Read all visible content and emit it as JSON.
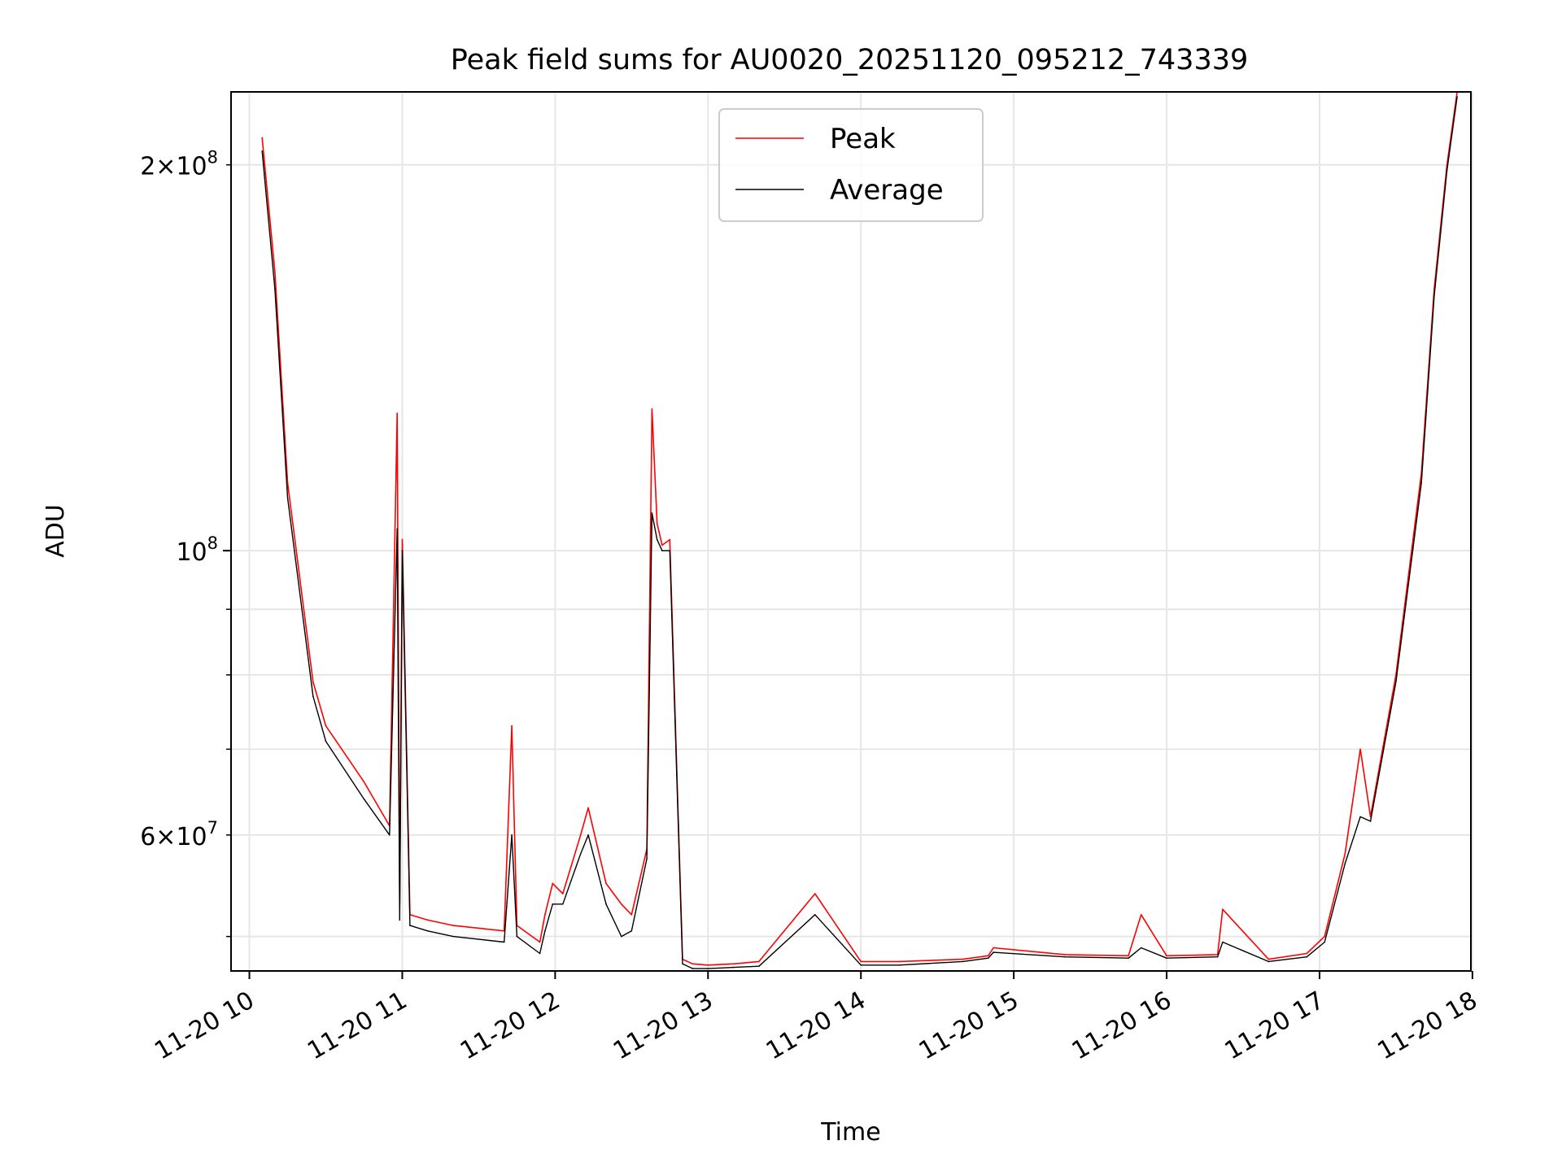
{
  "chart_data": {
    "type": "line",
    "title": "Peak field sums for AU0020_20251120_095212_743339",
    "xlabel": "Time",
    "ylabel": "ADU",
    "yscale": "log",
    "grid": true,
    "legend_position": "top-center",
    "x_ticks": [
      "11-20 10",
      "11-20 11",
      "11-20 12",
      "11-20 13",
      "11-20 14",
      "11-20 15",
      "11-20 16",
      "11-20 17",
      "11-20 18"
    ],
    "y_ticks_major": [
      {
        "value": 100000000,
        "base": "10",
        "exp": "8",
        "mant": ""
      }
    ],
    "y_ticks_labeled_minor": [
      {
        "value": 60000000,
        "mant": "6",
        "base": "10",
        "exp": "7"
      },
      {
        "value": 200000000,
        "mant": "2",
        "base": "10",
        "exp": "8"
      }
    ],
    "y_ticks_unlabeled_minor": [
      50000000,
      70000000,
      80000000,
      90000000
    ],
    "xlim_hours": [
      9.88,
      17.99
    ],
    "ylim": [
      47000000,
      228000000
    ],
    "series": [
      {
        "name": "Peak",
        "color": "#ff0000",
        "x": [
          "10:05",
          "10:10",
          "10:15",
          "10:25",
          "10:30",
          "10:45",
          "10:55",
          "10:58",
          "10:59",
          "11:00",
          "11:03",
          "11:10",
          "11:20",
          "11:40",
          "11:43",
          "11:45",
          "11:54",
          "11:56",
          "11:59",
          "12:03",
          "12:10",
          "12:13",
          "12:20",
          "12:26",
          "12:30",
          "12:36",
          "12:38",
          "12:40",
          "12:42",
          "12:45",
          "12:50",
          "12:54",
          "13:00",
          "13:10",
          "13:20",
          "13:42",
          "14:00",
          "14:15",
          "14:40",
          "14:50",
          "14:52",
          "15:20",
          "15:45",
          "15:50",
          "16:00",
          "16:20",
          "16:22",
          "16:40",
          "16:55",
          "17:02",
          "17:10",
          "17:16",
          "17:20",
          "17:30",
          "17:40",
          "17:45",
          "17:50",
          "17:54"
        ],
        "y": [
          210000000,
          165000000,
          113000000,
          79000000,
          73000000,
          66000000,
          61000000,
          128000000,
          53000000,
          102000000,
          52000000,
          51500000,
          51000000,
          50500000,
          73000000,
          51000000,
          49500000,
          52000000,
          55000000,
          54000000,
          60000000,
          63000000,
          55000000,
          53000000,
          52000000,
          58500000,
          129000000,
          105000000,
          101000000,
          102000000,
          48000000,
          47600000,
          47500000,
          47600000,
          47800000,
          54000000,
          47800000,
          47800000,
          48000000,
          48300000,
          49000000,
          48400000,
          48300000,
          52000000,
          48300000,
          48400000,
          52500000,
          48000000,
          48500000,
          50000000,
          58000000,
          70000000,
          62000000,
          80000000,
          115000000,
          160000000,
          200000000,
          228000000
        ]
      },
      {
        "name": "Average",
        "color": "#000000",
        "x": [
          "10:05",
          "10:10",
          "10:15",
          "10:25",
          "10:30",
          "10:45",
          "10:55",
          "10:58",
          "10:59",
          "11:00",
          "11:03",
          "11:10",
          "11:20",
          "11:40",
          "11:43",
          "11:45",
          "11:54",
          "11:56",
          "11:59",
          "12:03",
          "12:10",
          "12:13",
          "12:20",
          "12:26",
          "12:30",
          "12:36",
          "12:38",
          "12:40",
          "12:42",
          "12:45",
          "12:50",
          "12:54",
          "13:00",
          "13:10",
          "13:20",
          "13:42",
          "14:00",
          "14:15",
          "14:40",
          "14:50",
          "14:52",
          "15:20",
          "15:45",
          "15:50",
          "16:00",
          "16:20",
          "16:22",
          "16:40",
          "16:55",
          "17:02",
          "17:10",
          "17:16",
          "17:20",
          "17:30",
          "17:40",
          "17:45",
          "17:50",
          "17:54"
        ],
        "y": [
          205000000,
          160000000,
          110000000,
          77000000,
          71000000,
          64000000,
          60000000,
          104000000,
          51500000,
          100000000,
          51000000,
          50500000,
          50000000,
          49500000,
          60000000,
          50000000,
          48500000,
          50500000,
          53000000,
          53000000,
          58000000,
          60000000,
          53000000,
          50000000,
          50500000,
          57500000,
          107000000,
          102000000,
          100000000,
          100000000,
          47600000,
          47200000,
          47200000,
          47300000,
          47400000,
          52000000,
          47500000,
          47500000,
          47800000,
          48100000,
          48600000,
          48200000,
          48100000,
          49000000,
          48100000,
          48200000,
          49500000,
          47800000,
          48200000,
          49500000,
          57000000,
          62000000,
          61500000,
          79000000,
          113000000,
          158000000,
          198000000,
          226000000
        ]
      }
    ]
  }
}
